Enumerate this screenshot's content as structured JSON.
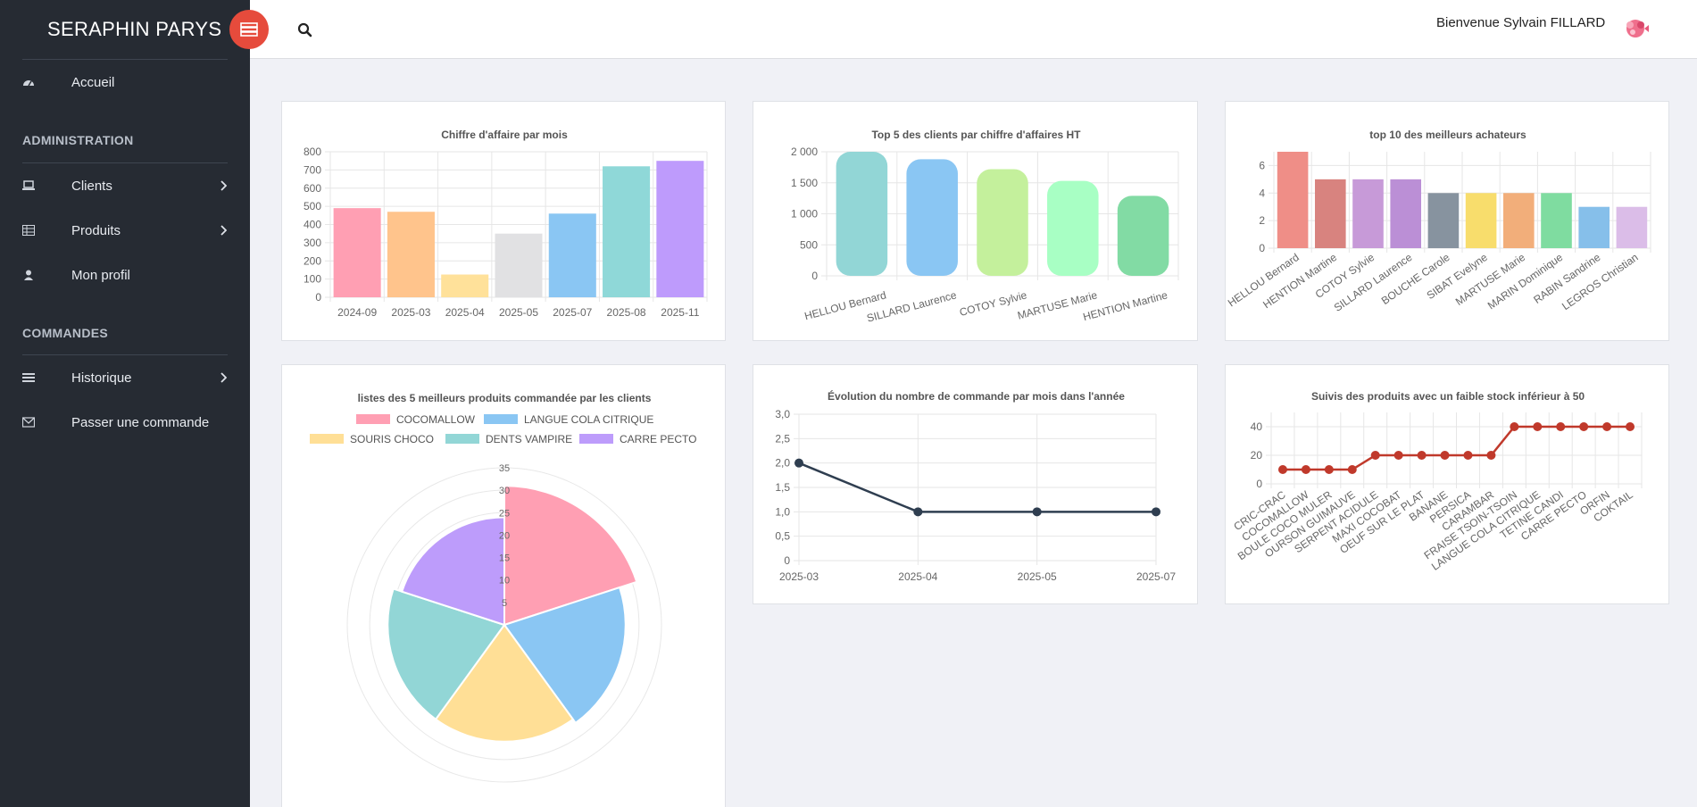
{
  "sidebar": {
    "brand": "SERAPHIN PARYS",
    "items": [
      {
        "label": "Accueil"
      },
      {
        "label": "Clients"
      },
      {
        "label": "Produits"
      },
      {
        "label": "Mon profil"
      },
      {
        "label": "Historique"
      },
      {
        "label": "Passer une commande"
      }
    ],
    "sections": {
      "administration": "ADMINISTRATION",
      "commandes": "COMMANDES"
    }
  },
  "topbar": {
    "welcome": "Bienvenue Sylvain FILLARD"
  },
  "colors": {
    "sidebar_bg": "#262b33",
    "toggle_red": "#e64b3c",
    "line_dark": "#2f3e50",
    "line_red": "#c0392b"
  },
  "chart_data": [
    {
      "type": "bar",
      "title": "Chiffre d'affaire par mois",
      "categories": [
        "2024-09",
        "2025-03",
        "2025-04",
        "2025-05",
        "2025-07",
        "2025-08",
        "2025-11"
      ],
      "values": [
        490,
        470,
        125,
        350,
        460,
        720,
        750
      ],
      "colors": [
        "#ff9fb3",
        "#ffc48c",
        "#ffe19a",
        "#e1e1e3",
        "#8ac6f3",
        "#8fd8d8",
        "#be9bfc"
      ],
      "ylim": [
        0,
        800
      ],
      "yticks": [
        "800",
        "700",
        "600",
        "500",
        "400",
        "300",
        "200",
        "100",
        "0"
      ]
    },
    {
      "type": "bar",
      "title": "Top 5 des clients par chiffre d'affaires HT",
      "categories": [
        "HELLOU Bernard",
        "SILLARD Laurence",
        "COTOY Sylvie",
        "MARTUSE Marie",
        "HENTION Martine"
      ],
      "values": [
        2000,
        1880,
        1720,
        1530,
        1290
      ],
      "colors": [
        "#92d6d6",
        "#8ac6f3",
        "#c4f09c",
        "#a8ffc4",
        "#82dba4"
      ],
      "ylim": [
        0,
        2000
      ],
      "yticks": [
        "2 000",
        "1 500",
        "1 000",
        "500",
        "0"
      ]
    },
    {
      "type": "bar",
      "title": "top 10 des meilleurs achateurs",
      "categories": [
        "HELLOU Bernard",
        "HENTION Martine",
        "COTOY Sylvie",
        "SILLARD Laurence",
        "BOUCHE Carole",
        "SIBAT Evelyne",
        "MARTUSE Marie",
        "MARIN Dominique",
        "RABIN Sandrine",
        "LEGROS Christian"
      ],
      "values": [
        7,
        5,
        5,
        5,
        4,
        4,
        4,
        4,
        3,
        3
      ],
      "colors": [
        "#ef8e87",
        "#d8837f",
        "#c79ad8",
        "#bb8fd6",
        "#87939f",
        "#f8dd6c",
        "#f2ae7a",
        "#7fdca0",
        "#86bfea",
        "#dbbde8"
      ],
      "ylim": [
        0,
        7
      ],
      "yticks": [
        "6",
        "4",
        "2",
        "0"
      ]
    },
    {
      "type": "polarArea",
      "title": "listes des 5 meilleurs produits commandée par les clients",
      "legend": [
        {
          "name": "COCOMALLOW",
          "color": "#ff9fb3"
        },
        {
          "name": "LANGUE COLA CITRIQUE",
          "color": "#8ac6f3"
        },
        {
          "name": "SOURIS CHOCO",
          "color": "#ffdf96"
        },
        {
          "name": "DENTS VAMPIRE",
          "color": "#92d6d6"
        },
        {
          "name": "CARRE PECTO",
          "color": "#bd9cfb"
        }
      ],
      "values": [
        31,
        27,
        26,
        26,
        24
      ],
      "rmax": 35,
      "rticks": [
        "35",
        "30",
        "25",
        "20",
        "15",
        "10",
        "5"
      ]
    },
    {
      "type": "line",
      "title": "Évolution du nombre de commande par mois dans l'année",
      "x": [
        "2025-03",
        "2025-04",
        "2025-05",
        "2025-07"
      ],
      "values": [
        2,
        1,
        1,
        1
      ],
      "ylim": [
        0,
        3
      ],
      "yticks": [
        "3,0",
        "2,5",
        "2,0",
        "1,5",
        "1,0",
        "0,5",
        "0"
      ]
    },
    {
      "type": "line",
      "title": "Suivis des produits avec un faible stock inférieur à 50",
      "x": [
        "CRIC-CRAC",
        "COCOMALLOW",
        "BOULE COCO MULER",
        "OURSON GUIMAUVE",
        "SERPENT ACIDULE",
        "MAXI COCOBAT",
        "OEUF SUR LE PLAT",
        "BANANE",
        "PERSICA",
        "CARAMBAR",
        "FRAISE TSOIN-TSOIN",
        "LANGUE COLA CITRIQUE",
        "TETINE CANDI",
        "CARRE PECTO",
        "ORFIN",
        "COKTAIL"
      ],
      "values": [
        10,
        10,
        10,
        10,
        20,
        20,
        20,
        20,
        20,
        20,
        40,
        40,
        40,
        40,
        40,
        40
      ],
      "ylim": [
        0,
        50
      ],
      "yticks": [
        "40",
        "20",
        "0"
      ]
    }
  ]
}
